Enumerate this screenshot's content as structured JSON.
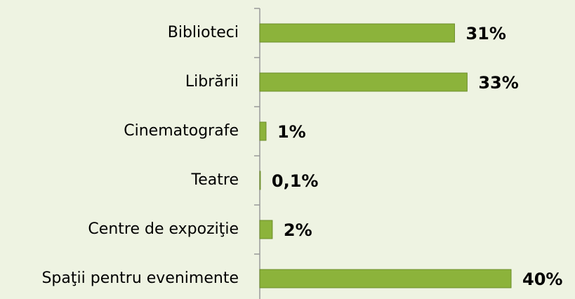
{
  "chart_data": {
    "type": "bar",
    "orientation": "horizontal",
    "categories": [
      "Biblioteci",
      "Librării",
      "Cinematografe",
      "Teatre",
      "Centre de expoziţie",
      "Spaţii pentru evenimente"
    ],
    "values": [
      31,
      33,
      1,
      0.1,
      2,
      40
    ],
    "value_labels": [
      "31%",
      "33%",
      "1%",
      "0,1%",
      "2%",
      "40%"
    ],
    "color": "#8cb33b"
  }
}
